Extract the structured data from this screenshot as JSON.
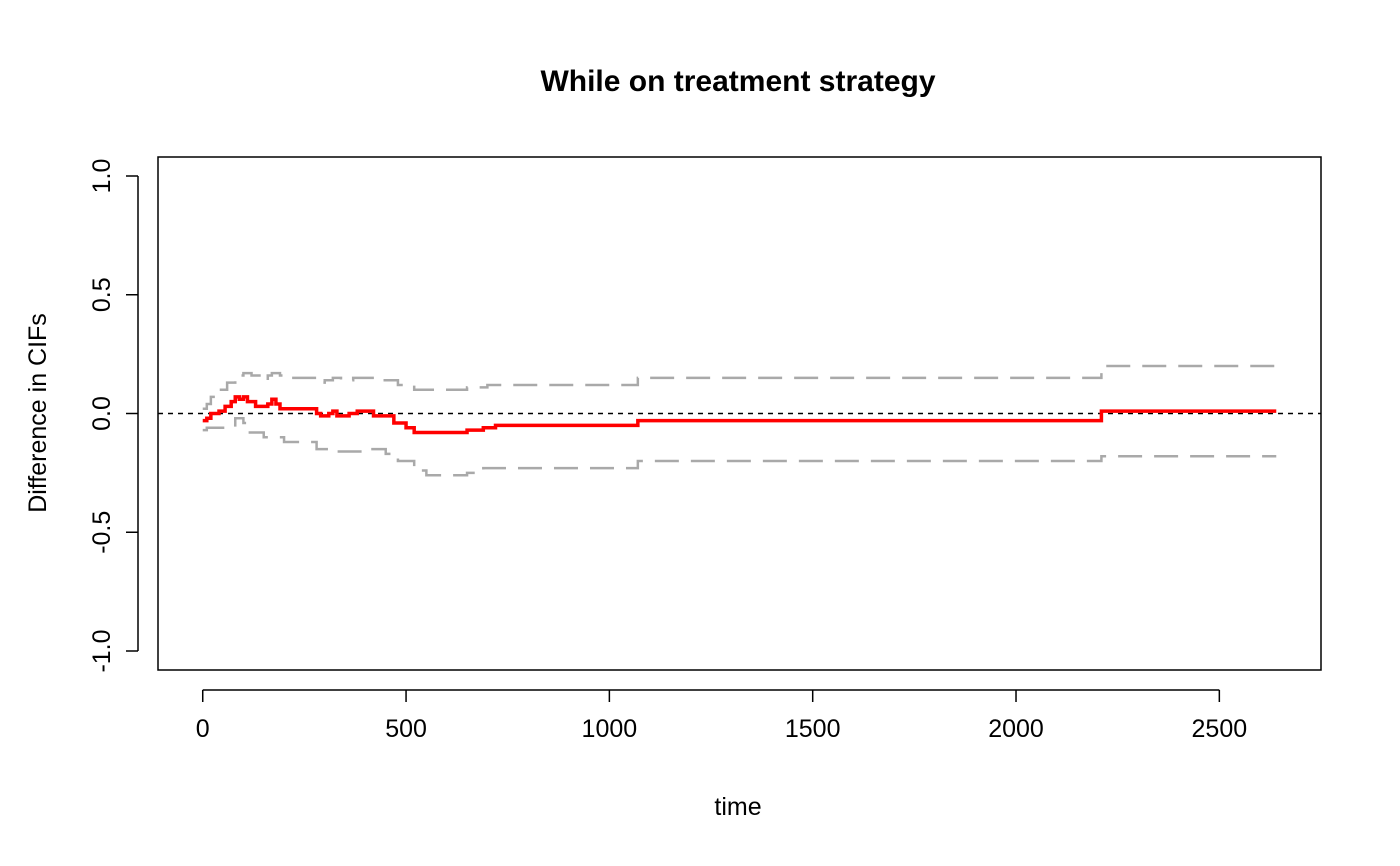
{
  "chart_data": {
    "type": "line",
    "title": "While on treatment strategy",
    "xlabel": "time",
    "ylabel": "Difference in CIFs",
    "xlim": [
      -110,
      2750
    ],
    "ylim": [
      -1.08,
      1.08
    ],
    "xticks": [
      0,
      500,
      1000,
      1500,
      2000,
      2500
    ],
    "xtick_labels": [
      "0",
      "500",
      "1000",
      "1500",
      "2000",
      "2500"
    ],
    "yticks": [
      -1.0,
      -0.5,
      0.0,
      0.5,
      1.0
    ],
    "ytick_labels": [
      "-1.0",
      "-0.5",
      "0.0",
      "0.5",
      "1.0"
    ],
    "reference_line": {
      "y": 0.0,
      "color": "#000000",
      "style": "dashed"
    },
    "grid": false,
    "colors": {
      "estimate": "#ff0000",
      "bounds": "#a9a9a9"
    },
    "series": [
      {
        "role": "estimate",
        "style": "solid-step",
        "points": [
          [
            0,
            -0.03
          ],
          [
            10,
            -0.02
          ],
          [
            20,
            0.0
          ],
          [
            40,
            0.01
          ],
          [
            55,
            0.03
          ],
          [
            70,
            0.05
          ],
          [
            80,
            0.07
          ],
          [
            90,
            0.06
          ],
          [
            100,
            0.07
          ],
          [
            110,
            0.05
          ],
          [
            130,
            0.03
          ],
          [
            160,
            0.04
          ],
          [
            170,
            0.06
          ],
          [
            180,
            0.04
          ],
          [
            190,
            0.02
          ],
          [
            280,
            0.0
          ],
          [
            290,
            -0.01
          ],
          [
            310,
            0.0
          ],
          [
            320,
            0.01
          ],
          [
            330,
            -0.01
          ],
          [
            360,
            0.0
          ],
          [
            380,
            0.01
          ],
          [
            420,
            -0.01
          ],
          [
            470,
            -0.04
          ],
          [
            500,
            -0.06
          ],
          [
            520,
            -0.08
          ],
          [
            650,
            -0.07
          ],
          [
            690,
            -0.06
          ],
          [
            720,
            -0.05
          ],
          [
            1070,
            -0.03
          ],
          [
            2210,
            0.01
          ],
          [
            2640,
            0.01
          ]
        ]
      },
      {
        "role": "upper-bound",
        "style": "dashed-step",
        "points": [
          [
            0,
            0.02
          ],
          [
            10,
            0.04
          ],
          [
            20,
            0.07
          ],
          [
            40,
            0.1
          ],
          [
            60,
            0.13
          ],
          [
            80,
            0.16
          ],
          [
            100,
            0.17
          ],
          [
            120,
            0.16
          ],
          [
            150,
            0.14
          ],
          [
            160,
            0.16
          ],
          [
            170,
            0.17
          ],
          [
            190,
            0.16
          ],
          [
            210,
            0.15
          ],
          [
            280,
            0.13
          ],
          [
            300,
            0.14
          ],
          [
            320,
            0.15
          ],
          [
            340,
            0.14
          ],
          [
            370,
            0.15
          ],
          [
            430,
            0.14
          ],
          [
            480,
            0.12
          ],
          [
            520,
            0.1
          ],
          [
            650,
            0.11
          ],
          [
            700,
            0.12
          ],
          [
            1070,
            0.15
          ],
          [
            2210,
            0.2
          ],
          [
            2640,
            0.2
          ]
        ]
      },
      {
        "role": "lower-bound",
        "style": "dashed-step",
        "points": [
          [
            0,
            -0.07
          ],
          [
            10,
            -0.06
          ],
          [
            50,
            -0.05
          ],
          [
            80,
            -0.02
          ],
          [
            100,
            -0.04
          ],
          [
            110,
            -0.08
          ],
          [
            150,
            -0.1
          ],
          [
            200,
            -0.12
          ],
          [
            280,
            -0.15
          ],
          [
            330,
            -0.16
          ],
          [
            400,
            -0.15
          ],
          [
            450,
            -0.17
          ],
          [
            480,
            -0.2
          ],
          [
            520,
            -0.24
          ],
          [
            550,
            -0.26
          ],
          [
            650,
            -0.25
          ],
          [
            690,
            -0.23
          ],
          [
            1070,
            -0.2
          ],
          [
            2210,
            -0.18
          ],
          [
            2640,
            -0.18
          ]
        ]
      }
    ]
  }
}
